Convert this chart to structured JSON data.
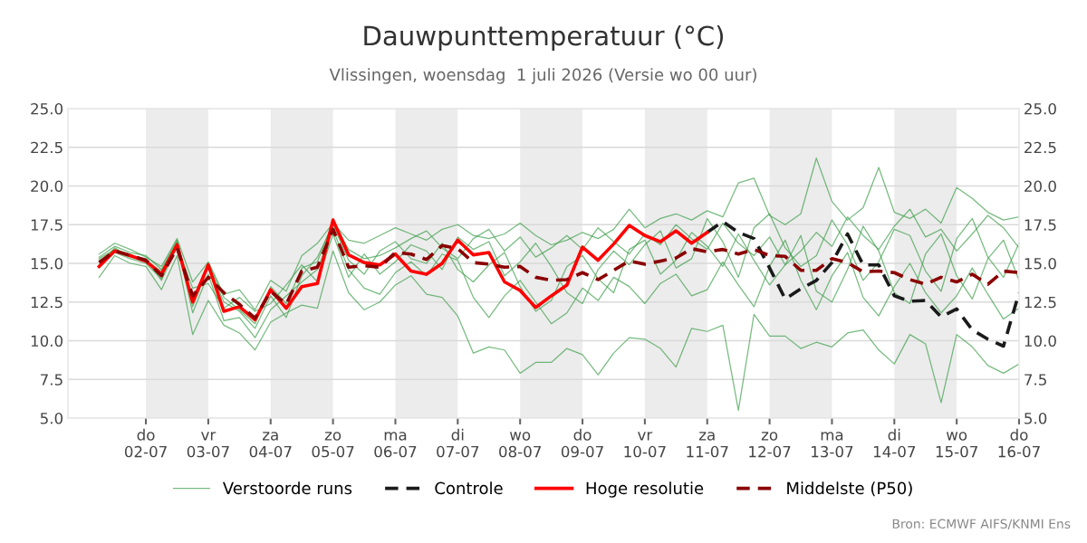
{
  "chart_data": {
    "type": "line",
    "title": "Dauwpunttemperatuur (°C)",
    "subtitle": "Vlissingen, woensdag  1 juli 2026 (Versie wo 00 uur)",
    "annotations": [
      "Bron: ECMWF AIFS/KNMI Ens"
    ],
    "x": [
      "2026-07-01T06:00",
      "2026-07-01T12:00",
      "2026-07-01T18:00",
      "2026-07-02T00:00",
      "2026-07-02T06:00",
      "2026-07-02T12:00",
      "2026-07-02T18:00",
      "2026-07-03T00:00",
      "2026-07-03T06:00",
      "2026-07-03T12:00",
      "2026-07-03T18:00",
      "2026-07-04T00:00",
      "2026-07-04T06:00",
      "2026-07-04T12:00",
      "2026-07-04T18:00",
      "2026-07-05T00:00",
      "2026-07-05T06:00",
      "2026-07-05T12:00",
      "2026-07-05T18:00",
      "2026-07-06T00:00",
      "2026-07-06T06:00",
      "2026-07-06T12:00",
      "2026-07-06T18:00",
      "2026-07-07T00:00",
      "2026-07-07T06:00",
      "2026-07-07T12:00",
      "2026-07-07T18:00",
      "2026-07-08T00:00",
      "2026-07-08T06:00",
      "2026-07-08T12:00",
      "2026-07-08T18:00",
      "2026-07-09T00:00",
      "2026-07-09T06:00",
      "2026-07-09T12:00",
      "2026-07-09T18:00",
      "2026-07-10T00:00",
      "2026-07-10T06:00",
      "2026-07-10T12:00",
      "2026-07-10T18:00",
      "2026-07-11T00:00",
      "2026-07-11T06:00",
      "2026-07-11T12:00",
      "2026-07-11T18:00",
      "2026-07-12T00:00",
      "2026-07-12T06:00",
      "2026-07-12T12:00",
      "2026-07-12T18:00",
      "2026-07-13T00:00",
      "2026-07-13T06:00",
      "2026-07-13T12:00",
      "2026-07-13T18:00",
      "2026-07-14T00:00",
      "2026-07-14T06:00",
      "2026-07-14T12:00",
      "2026-07-14T18:00",
      "2026-07-15T00:00",
      "2026-07-15T06:00",
      "2026-07-15T12:00",
      "2026-07-15T18:00",
      "2026-07-16T00:00"
    ],
    "series": [
      {
        "name": "Verstoorde runs",
        "color": "#3d9e4a",
        "line_style": "solid",
        "values": [
          15.6,
          16.3,
          15.9,
          15.4,
          14.8,
          16.6,
          13.8,
          15.1,
          13.0,
          13.3,
          12.0,
          13.9,
          13.2,
          15.5,
          16.3,
          17.6,
          16.5,
          16.3,
          16.8,
          17.3,
          16.9,
          16.5,
          17.2,
          17.5,
          16.8,
          16.6,
          16.9,
          17.6,
          16.8,
          16.2,
          16.5,
          17.0,
          16.6,
          17.2,
          18.5,
          17.3,
          17.9,
          18.2,
          17.8,
          18.4,
          18.0,
          20.2,
          20.5,
          18.1,
          17.5,
          18.2,
          21.8,
          19.0,
          17.8,
          18.6,
          21.2,
          18.3,
          17.9,
          18.5,
          17.6,
          19.9,
          19.2,
          18.3,
          17.8,
          18.0
        ]
      },
      {
        "color": "#3d9e4a",
        "line_style": "solid",
        "values": [
          14.1,
          15.5,
          15.0,
          14.8,
          13.3,
          15.5,
          10.4,
          12.6,
          11.0,
          10.5,
          9.4,
          11.2,
          11.8,
          12.3,
          12.1,
          15.8,
          13.1,
          12.0,
          12.5,
          13.6,
          14.2,
          13.0,
          12.8,
          11.6,
          9.2,
          9.6,
          9.4,
          7.9,
          8.6,
          8.6,
          9.5,
          9.1,
          7.8,
          9.2,
          10.2,
          10.1,
          9.5,
          8.3,
          10.8,
          10.6,
          11.0,
          5.5,
          11.7,
          10.3,
          10.3,
          9.5,
          9.9,
          9.6,
          10.5,
          10.7,
          9.4,
          8.5,
          10.4,
          9.8,
          6.0,
          10.4,
          9.6,
          8.4,
          7.9,
          8.5
        ]
      },
      {
        "color": "#3d9e4a",
        "line_style": "solid",
        "values": [
          15.3,
          15.9,
          15.6,
          15.1,
          14.5,
          16.4,
          12.2,
          14.8,
          12.5,
          11.9,
          10.8,
          12.9,
          11.5,
          14.2,
          15.4,
          17.5,
          15.2,
          14.3,
          15.8,
          16.4,
          15.3,
          15.0,
          16.3,
          14.6,
          13.8,
          14.9,
          15.7,
          13.5,
          11.9,
          12.6,
          14.8,
          15.5,
          14.0,
          13.1,
          15.9,
          16.5,
          14.3,
          15.2,
          17.0,
          16.1,
          14.8,
          16.9,
          15.2,
          13.6,
          14.9,
          16.8,
          13.2,
          12.5,
          14.6,
          17.4,
          15.8,
          13.1,
          12.4,
          15.6,
          16.9,
          14.2,
          12.7,
          15.3,
          16.5,
          13.9
        ]
      },
      {
        "color": "#3d9e4a",
        "line_style": "solid",
        "values": [
          14.9,
          16.0,
          15.4,
          15.3,
          13.9,
          16.1,
          13.4,
          13.7,
          12.1,
          12.8,
          11.9,
          12.4,
          13.6,
          14.9,
          13.8,
          16.9,
          14.1,
          15.6,
          14.3,
          15.1,
          16.2,
          15.8,
          14.6,
          16.7,
          15.9,
          16.4,
          14.2,
          15.1,
          16.3,
          14.8,
          13.1,
          12.4,
          14.6,
          15.8,
          14.9,
          16.2,
          17.1,
          14.7,
          15.3,
          17.9,
          16.4,
          14.1,
          17.3,
          18.2,
          16.0,
          14.8,
          15.5,
          17.8,
          16.2,
          13.9,
          15.1,
          17.2,
          16.8,
          14.5,
          13.2,
          16.6,
          17.9,
          15.4,
          14.1,
          16.3
        ]
      },
      {
        "color": "#3d9e4a",
        "line_style": "solid",
        "values": [
          15.2,
          15.7,
          15.3,
          15.0,
          14.0,
          16.3,
          11.8,
          14.3,
          11.3,
          11.5,
          10.2,
          12.0,
          12.9,
          13.8,
          14.6,
          17.2,
          14.6,
          13.4,
          13.0,
          14.4,
          15.1,
          14.2,
          15.6,
          15.2,
          12.8,
          11.5,
          12.9,
          13.9,
          12.5,
          11.1,
          11.8,
          13.4,
          12.6,
          14.1,
          13.5,
          12.4,
          13.7,
          14.3,
          12.9,
          13.3,
          15.1,
          13.6,
          12.2,
          14.8,
          16.5,
          13.9,
          12.0,
          14.2,
          15.7,
          12.8,
          11.6,
          13.5,
          15.0,
          13.1,
          11.8,
          12.9,
          14.7,
          13.0,
          11.4,
          12.1
        ]
      },
      {
        "color": "#3d9e4a",
        "line_style": "solid",
        "values": [
          15.4,
          16.1,
          15.7,
          15.5,
          14.6,
          16.5,
          12.6,
          15.0,
          12.8,
          12.0,
          11.1,
          13.5,
          12.4,
          14.7,
          15.1,
          17.7,
          15.9,
          15.3,
          15.5,
          16.0,
          16.6,
          17.1,
          16.0,
          15.3,
          16.6,
          17.2,
          15.8,
          16.7,
          15.4,
          16.0,
          16.8,
          15.9,
          17.3,
          16.4,
          15.6,
          16.9,
          16.2,
          17.5,
          16.6,
          15.9,
          17.6,
          16.3,
          15.5,
          16.7,
          14.9,
          15.8,
          17.0,
          16.1,
          18.0,
          16.8,
          15.9,
          17.4,
          18.5,
          16.7,
          17.2,
          15.8,
          16.9,
          18.1,
          17.3,
          16.0
        ]
      },
      {
        "name": "Controle",
        "color": "#1a1a1a",
        "line_style": "dashed",
        "values": [
          null,
          null,
          null,
          null,
          null,
          null,
          null,
          null,
          null,
          null,
          null,
          null,
          null,
          null,
          null,
          null,
          null,
          null,
          null,
          null,
          null,
          null,
          null,
          null,
          null,
          null,
          null,
          null,
          null,
          null,
          null,
          null,
          null,
          null,
          null,
          null,
          null,
          null,
          null,
          17.0,
          17.7,
          17.0,
          16.6,
          14.7,
          12.7,
          13.35,
          13.9,
          15.05,
          16.9,
          14.9,
          14.9,
          12.9,
          12.55,
          12.6,
          11.55,
          12.05,
          10.7,
          10.1,
          9.65,
          13.1
        ]
      },
      {
        "name": "Hoge resolutie",
        "color": "#ff0000",
        "line_style": "solid",
        "values": [
          14.8,
          15.8,
          15.5,
          15.15,
          14.3,
          16.2,
          12.5,
          14.9,
          11.9,
          12.2,
          11.35,
          13.3,
          12.1,
          13.5,
          13.7,
          17.8,
          15.55,
          15.05,
          14.9,
          15.6,
          14.5,
          14.3,
          15.0,
          16.5,
          15.55,
          15.7,
          13.8,
          13.25,
          12.15,
          12.9,
          13.6,
          16.05,
          15.2,
          16.25,
          17.45,
          16.8,
          16.4,
          17.1,
          16.3,
          17.0,
          null,
          null,
          null,
          null,
          null,
          null,
          null,
          null,
          null,
          null,
          null,
          null,
          null,
          null,
          null,
          null,
          null,
          null,
          null,
          null
        ]
      },
      {
        "name": "Middelste (P50)",
        "color": "#8b0000",
        "line_style": "dashed",
        "values": [
          15.05,
          15.8,
          15.5,
          15.2,
          14.2,
          16.0,
          12.9,
          14.1,
          13.1,
          12.35,
          11.45,
          13.2,
          12.35,
          14.5,
          14.75,
          17.2,
          14.75,
          14.85,
          14.75,
          15.7,
          15.6,
          15.25,
          16.15,
          15.95,
          15.05,
          14.95,
          14.75,
          14.8,
          14.1,
          13.9,
          13.95,
          14.4,
          13.95,
          14.55,
          15.15,
          14.95,
          15.15,
          15.35,
          15.95,
          15.75,
          15.9,
          15.6,
          15.9,
          15.5,
          15.45,
          14.55,
          14.55,
          15.3,
          15.05,
          14.45,
          14.5,
          14.4,
          13.95,
          13.65,
          14.1,
          13.8,
          14.3,
          13.65,
          14.5,
          14.4
        ]
      }
    ],
    "xlim": [
      "2026-06-30T18:00",
      "2026-07-16T00:00"
    ],
    "xticks": [
      {
        "value": "2026-07-02",
        "label": "do\n02-07"
      },
      {
        "value": "2026-07-03",
        "label": "vr\n03-07"
      },
      {
        "value": "2026-07-04",
        "label": "za\n04-07"
      },
      {
        "value": "2026-07-05",
        "label": "zo\n05-07"
      },
      {
        "value": "2026-07-06",
        "label": "ma\n06-07"
      },
      {
        "value": "2026-07-07",
        "label": "di\n07-07"
      },
      {
        "value": "2026-07-08",
        "label": "wo\n08-07"
      },
      {
        "value": "2026-07-09",
        "label": "do\n09-07"
      },
      {
        "value": "2026-07-10",
        "label": "vr\n10-07"
      },
      {
        "value": "2026-07-11",
        "label": "za\n11-07"
      },
      {
        "value": "2026-07-12",
        "label": "zo\n12-07"
      },
      {
        "value": "2026-07-13",
        "label": "ma\n13-07"
      },
      {
        "value": "2026-07-14",
        "label": "di\n14-07"
      },
      {
        "value": "2026-07-15",
        "label": "wo\n15-07"
      },
      {
        "value": "2026-07-16",
        "label": "do\n16-07"
      }
    ],
    "ylim": [
      5.0,
      25.0
    ],
    "yticks": [
      {
        "value": 5.0,
        "label": "5.0"
      },
      {
        "value": 7.5,
        "label": "7.5"
      },
      {
        "value": 10.0,
        "label": "10.0"
      },
      {
        "value": 12.5,
        "label": "12.5"
      },
      {
        "value": 15.0,
        "label": "15.0"
      },
      {
        "value": 17.5,
        "label": "17.5"
      },
      {
        "value": 20.0,
        "label": "20.0"
      },
      {
        "value": 22.5,
        "label": "22.5"
      },
      {
        "value": 25.0,
        "label": "25.0"
      }
    ],
    "y2lim": [
      5.0,
      25.0
    ],
    "y2ticks": [
      {
        "value": 5.0,
        "label": "5.0"
      },
      {
        "value": 7.5,
        "label": "7.5"
      },
      {
        "value": 10.0,
        "label": "10.0"
      },
      {
        "value": 12.5,
        "label": "12.5"
      },
      {
        "value": 15.0,
        "label": "15.0"
      },
      {
        "value": 17.5,
        "label": "17.5"
      },
      {
        "value": 20.0,
        "label": "20.0"
      },
      {
        "value": 22.5,
        "label": "22.5"
      },
      {
        "value": 25.0,
        "label": "25.0"
      }
    ],
    "bands": [
      {
        "axis": "x",
        "from": "2026-07-02",
        "to": "2026-07-03",
        "color": "#ececec"
      },
      {
        "axis": "x",
        "from": "2026-07-04",
        "to": "2026-07-05",
        "color": "#ececec"
      },
      {
        "axis": "x",
        "from": "2026-07-06",
        "to": "2026-07-07",
        "color": "#ececec"
      },
      {
        "axis": "x",
        "from": "2026-07-08",
        "to": "2026-07-09",
        "color": "#ececec"
      },
      {
        "axis": "x",
        "from": "2026-07-10",
        "to": "2026-07-11",
        "color": "#ececec"
      },
      {
        "axis": "x",
        "from": "2026-07-12",
        "to": "2026-07-13",
        "color": "#ececec"
      },
      {
        "axis": "x",
        "from": "2026-07-14",
        "to": "2026-07-15",
        "color": "#ececec"
      }
    ],
    "grid": "y",
    "legend": "bottom",
    "marker": "none"
  }
}
